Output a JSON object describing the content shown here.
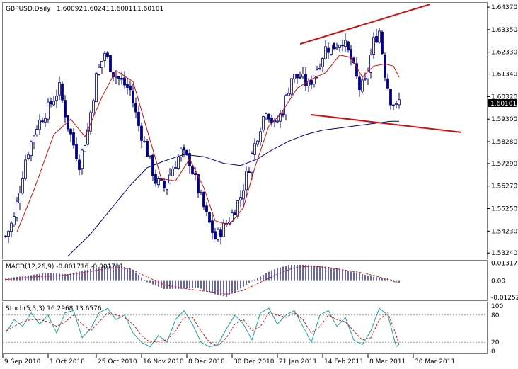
{
  "chart_data": [
    {
      "type": "candlestick",
      "title": "GBPUSD,Daily",
      "ohlc_header": [
        "1.60092",
        "1.60241",
        "1.60011",
        "1.60101"
      ],
      "current_price_label": "1.60101",
      "y_tick_labels": [
        "1.64370",
        "1.63350",
        "1.62330",
        "1.61340",
        "1.60320",
        "1.59300",
        "1.58280",
        "1.57290",
        "1.56270",
        "1.55250",
        "1.54230",
        "1.53240"
      ],
      "y_tick_values": [
        1.6437,
        1.6335,
        1.6233,
        1.6134,
        1.6032,
        1.593,
        1.5828,
        1.5729,
        1.5627,
        1.5525,
        1.5423,
        1.5324
      ],
      "ylim": [
        1.5315,
        1.645
      ],
      "x_tick_labels": [
        "9 Sep 2010",
        "1 Oct 2010",
        "25 Oct 2010",
        "16 Nov 2010",
        "8 Dec 2010",
        "30 Dec 2010",
        "21 Jan 2011",
        "14 Feb 2011",
        "8 Mar 2011",
        "30 Mar 2011"
      ],
      "x_tick_indices": [
        0,
        16,
        33,
        49,
        65,
        81,
        97,
        113,
        129,
        145
      ],
      "bar_count": 140,
      "close_path": [
        [
          0,
          1.54
        ],
        [
          3,
          1.548
        ],
        [
          7,
          1.575
        ],
        [
          11,
          1.59
        ],
        [
          15,
          1.598
        ],
        [
          19,
          1.607
        ],
        [
          22,
          1.59
        ],
        [
          26,
          1.573
        ],
        [
          29,
          1.588
        ],
        [
          32,
          1.612
        ],
        [
          35,
          1.623
        ],
        [
          38,
          1.614
        ],
        [
          41,
          1.61
        ],
        [
          44,
          1.606
        ],
        [
          47,
          1.59
        ],
        [
          50,
          1.578
        ],
        [
          53,
          1.565
        ],
        [
          56,
          1.562
        ],
        [
          59,
          1.571
        ],
        [
          62,
          1.578
        ],
        [
          65,
          1.574
        ],
        [
          68,
          1.561
        ],
        [
          71,
          1.549
        ],
        [
          74,
          1.539
        ],
        [
          77,
          1.544
        ],
        [
          80,
          1.55
        ],
        [
          83,
          1.558
        ],
        [
          86,
          1.572
        ],
        [
          89,
          1.586
        ],
        [
          92,
          1.598
        ],
        [
          95,
          1.59
        ],
        [
          98,
          1.597
        ],
        [
          101,
          1.612
        ],
        [
          104,
          1.612
        ],
        [
          107,
          1.608
        ],
        [
          110,
          1.616
        ],
        [
          113,
          1.625
        ],
        [
          116,
          1.626
        ],
        [
          119,
          1.629
        ],
        [
          122,
          1.62
        ],
        [
          125,
          1.607
        ],
        [
          127,
          1.609
        ],
        [
          130,
          1.628
        ],
        [
          132,
          1.633
        ],
        [
          134,
          1.614
        ],
        [
          136,
          1.602
        ],
        [
          138,
          1.598
        ],
        [
          139,
          1.601
        ]
      ],
      "series": [
        {
          "name": "",
          "kind": "ma_fast",
          "color": "#d01010",
          "values": [
            [
              4,
              1.542
            ],
            [
              10,
              1.561
            ],
            [
              17,
              1.586
            ],
            [
              23,
              1.593
            ],
            [
              28,
              1.585
            ],
            [
              34,
              1.603
            ],
            [
              39,
              1.615
            ],
            [
              45,
              1.61
            ],
            [
              50,
              1.588
            ],
            [
              55,
              1.566
            ],
            [
              60,
              1.565
            ],
            [
              65,
              1.575
            ],
            [
              70,
              1.562
            ],
            [
              74,
              1.547
            ],
            [
              79,
              1.545
            ],
            [
              84,
              1.553
            ],
            [
              88,
              1.571
            ],
            [
              93,
              1.59
            ],
            [
              97,
              1.595
            ],
            [
              103,
              1.607
            ],
            [
              108,
              1.611
            ],
            [
              113,
              1.614
            ],
            [
              118,
              1.622
            ],
            [
              122,
              1.621
            ],
            [
              126,
              1.612
            ],
            [
              130,
              1.617
            ],
            [
              134,
              1.618
            ],
            [
              137,
              1.617
            ],
            [
              139,
              1.612
            ]
          ]
        },
        {
          "name": "",
          "kind": "ma_slow",
          "color": "#000080",
          "values": [
            [
              22,
              1.531
            ],
            [
              30,
              1.541
            ],
            [
              37,
              1.552
            ],
            [
              44,
              1.563
            ],
            [
              50,
              1.571
            ],
            [
              56,
              1.574
            ],
            [
              63,
              1.577
            ],
            [
              70,
              1.576
            ],
            [
              77,
              1.573
            ],
            [
              83,
              1.572
            ],
            [
              89,
              1.575
            ],
            [
              94,
              1.579
            ],
            [
              100,
              1.583
            ],
            [
              106,
              1.586
            ],
            [
              112,
              1.588
            ],
            [
              118,
              1.589
            ],
            [
              124,
              1.59
            ],
            [
              130,
              1.591
            ],
            [
              136,
              1.592
            ],
            [
              139,
              1.592
            ]
          ]
        }
      ],
      "trendlines": [
        {
          "color": "#d01010",
          "points": [
            [
              104,
              1.627
            ],
            [
              150,
              1.645
            ]
          ]
        },
        {
          "color": "#d01010",
          "points": [
            [
              108,
              1.595
            ],
            [
              161,
              1.587
            ]
          ]
        }
      ]
    },
    {
      "type": "bar",
      "title": "MACD(12,26,9) -0.001716 -0.001711",
      "y_tick_labels": [
        "0.013173",
        "0.00",
        "-0.012523"
      ],
      "y_tick_values": [
        0.013173,
        0,
        -0.012523
      ],
      "ylim": [
        -0.014,
        0.0146
      ],
      "bars_path": [
        [
          0,
          0.002
        ],
        [
          8,
          0.004
        ],
        [
          14,
          0.006
        ],
        [
          22,
          0.005
        ],
        [
          28,
          0.008
        ],
        [
          35,
          0.011
        ],
        [
          40,
          0.012
        ],
        [
          45,
          0.008
        ],
        [
          50,
          -0.001
        ],
        [
          56,
          -0.006
        ],
        [
          62,
          -0.006
        ],
        [
          68,
          -0.005
        ],
        [
          74,
          -0.01
        ],
        [
          78,
          -0.012
        ],
        [
          82,
          -0.007
        ],
        [
          88,
          0.001
        ],
        [
          94,
          0.008
        ],
        [
          100,
          0.012
        ],
        [
          106,
          0.012
        ],
        [
          112,
          0.011
        ],
        [
          118,
          0.009
        ],
        [
          124,
          0.006
        ],
        [
          130,
          0.003
        ],
        [
          135,
          0.002
        ],
        [
          139,
          -0.0017
        ]
      ],
      "signal_path": [
        [
          0,
          0.001
        ],
        [
          10,
          0.003
        ],
        [
          20,
          0.004
        ],
        [
          30,
          0.007
        ],
        [
          38,
          0.01
        ],
        [
          44,
          0.009
        ],
        [
          50,
          0.003
        ],
        [
          56,
          -0.003
        ],
        [
          64,
          -0.006
        ],
        [
          72,
          -0.008
        ],
        [
          78,
          -0.01
        ],
        [
          84,
          -0.007
        ],
        [
          90,
          -0.001
        ],
        [
          96,
          0.005
        ],
        [
          102,
          0.01
        ],
        [
          108,
          0.011
        ],
        [
          114,
          0.01
        ],
        [
          120,
          0.008
        ],
        [
          126,
          0.006
        ],
        [
          132,
          0.003
        ],
        [
          139,
          -0.0017
        ]
      ]
    },
    {
      "type": "line",
      "title": "Stoch(5,3,3) 16.2968 13.6576",
      "y_tick_labels": [
        "100",
        "80",
        "20",
        "0"
      ],
      "y_tick_values": [
        100,
        80,
        20,
        0
      ],
      "ylim": [
        0,
        100
      ],
      "levels": [
        80,
        20
      ],
      "main_path": [
        [
          0,
          40
        ],
        [
          3,
          70
        ],
        [
          6,
          55
        ],
        [
          9,
          85
        ],
        [
          12,
          60
        ],
        [
          15,
          80
        ],
        [
          18,
          40
        ],
        [
          21,
          85
        ],
        [
          24,
          90
        ],
        [
          27,
          30
        ],
        [
          30,
          50
        ],
        [
          33,
          85
        ],
        [
          36,
          95
        ],
        [
          39,
          70
        ],
        [
          42,
          80
        ],
        [
          45,
          40
        ],
        [
          48,
          20
        ],
        [
          51,
          10
        ],
        [
          54,
          35
        ],
        [
          57,
          20
        ],
        [
          60,
          70
        ],
        [
          63,
          90
        ],
        [
          66,
          60
        ],
        [
          69,
          20
        ],
        [
          72,
          10
        ],
        [
          75,
          15
        ],
        [
          78,
          50
        ],
        [
          81,
          80
        ],
        [
          84,
          60
        ],
        [
          87,
          25
        ],
        [
          90,
          85
        ],
        [
          93,
          95
        ],
        [
          96,
          60
        ],
        [
          99,
          80
        ],
        [
          102,
          90
        ],
        [
          105,
          55
        ],
        [
          108,
          20
        ],
        [
          111,
          80
        ],
        [
          114,
          90
        ],
        [
          117,
          55
        ],
        [
          120,
          75
        ],
        [
          123,
          25
        ],
        [
          126,
          15
        ],
        [
          129,
          45
        ],
        [
          132,
          95
        ],
        [
          135,
          80
        ],
        [
          138,
          10
        ],
        [
          139,
          16
        ]
      ],
      "signal_path": [
        [
          0,
          45
        ],
        [
          3,
          55
        ],
        [
          6,
          65
        ],
        [
          9,
          70
        ],
        [
          12,
          70
        ],
        [
          15,
          65
        ],
        [
          18,
          55
        ],
        [
          21,
          65
        ],
        [
          24,
          80
        ],
        [
          27,
          60
        ],
        [
          30,
          45
        ],
        [
          33,
          65
        ],
        [
          36,
          85
        ],
        [
          39,
          80
        ],
        [
          42,
          75
        ],
        [
          45,
          60
        ],
        [
          48,
          35
        ],
        [
          51,
          20
        ],
        [
          54,
          22
        ],
        [
          57,
          25
        ],
        [
          60,
          45
        ],
        [
          63,
          75
        ],
        [
          66,
          75
        ],
        [
          69,
          45
        ],
        [
          72,
          20
        ],
        [
          75,
          12
        ],
        [
          78,
          30
        ],
        [
          81,
          60
        ],
        [
          84,
          70
        ],
        [
          87,
          45
        ],
        [
          90,
          55
        ],
        [
          93,
          85
        ],
        [
          96,
          80
        ],
        [
          99,
          75
        ],
        [
          102,
          85
        ],
        [
          105,
          70
        ],
        [
          108,
          40
        ],
        [
          111,
          55
        ],
        [
          114,
          80
        ],
        [
          117,
          70
        ],
        [
          120,
          65
        ],
        [
          123,
          45
        ],
        [
          126,
          25
        ],
        [
          129,
          30
        ],
        [
          132,
          70
        ],
        [
          135,
          85
        ],
        [
          138,
          35
        ],
        [
          139,
          14
        ]
      ]
    }
  ]
}
